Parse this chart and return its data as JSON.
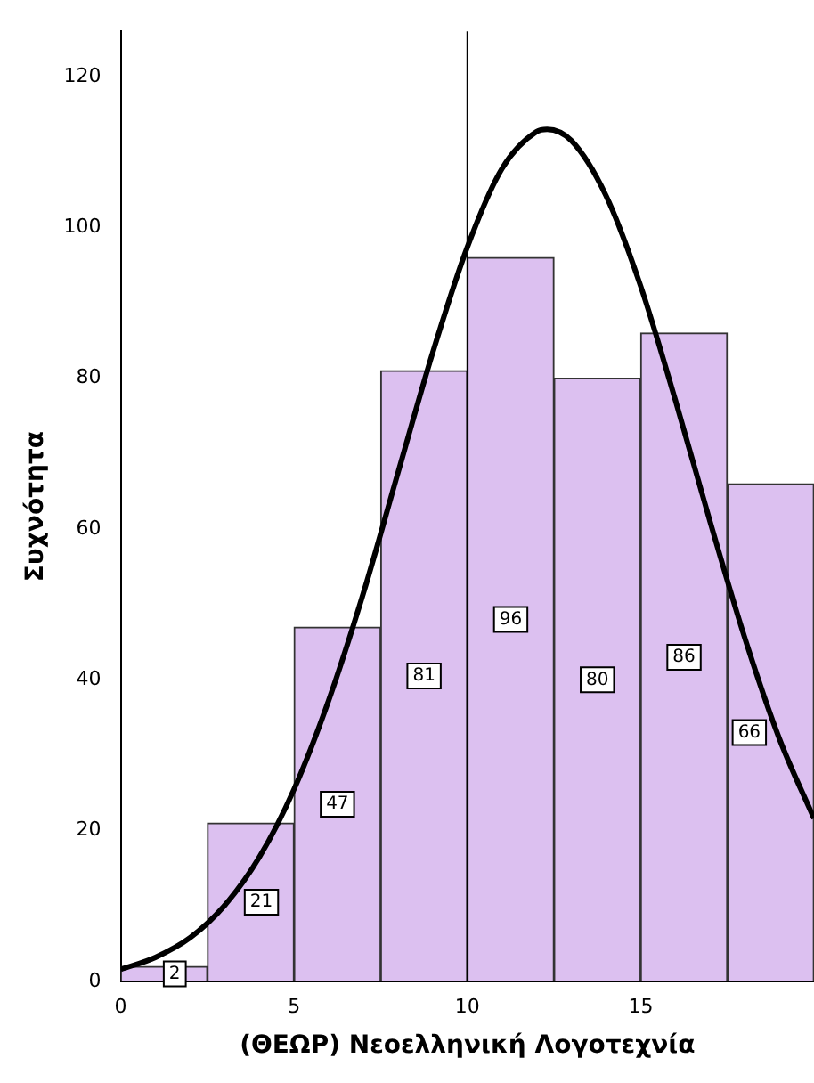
{
  "chart_data": {
    "type": "histogram",
    "xlabel": "(ΘΕΩΡ) Νεοελληνική Λογοτεχνία",
    "ylabel": "Συχνότητα",
    "bins": [
      0,
      2.5,
      5,
      7.5,
      10,
      12.5,
      15,
      17.5,
      20
    ],
    "values": [
      2,
      21,
      47,
      81,
      96,
      80,
      86,
      66
    ],
    "color": "#dcc0f0",
    "series": [
      {
        "type": "line",
        "color": "#000000",
        "x": [
          0,
          1,
          2,
          3,
          4,
          5,
          6,
          7,
          8,
          9,
          10,
          11,
          12,
          12.3,
          13,
          14,
          15,
          16,
          17,
          18,
          19,
          20
        ],
        "values": [
          1.6,
          3.2,
          5.8,
          10.1,
          16.5,
          25.5,
          37.3,
          51.5,
          67.5,
          83.4,
          97.4,
          107.8,
          112.7,
          113,
          111.5,
          104.2,
          92.2,
          77.1,
          61,
          45.6,
          32.2,
          21.6
        ]
      }
    ],
    "ref_lines": [
      {
        "axis": "x",
        "value": 10,
        "color": "#000000"
      }
    ],
    "value_labels": [
      "2",
      "21",
      "47",
      "81",
      "96",
      "80",
      "86",
      "66"
    ],
    "xlim": [
      0,
      20
    ],
    "xticks": [
      0,
      5,
      10,
      15
    ],
    "ylim": [
      0,
      126
    ],
    "yticks": [
      0,
      20,
      40,
      60,
      80,
      100,
      120
    ],
    "grid": false,
    "legend": false
  }
}
